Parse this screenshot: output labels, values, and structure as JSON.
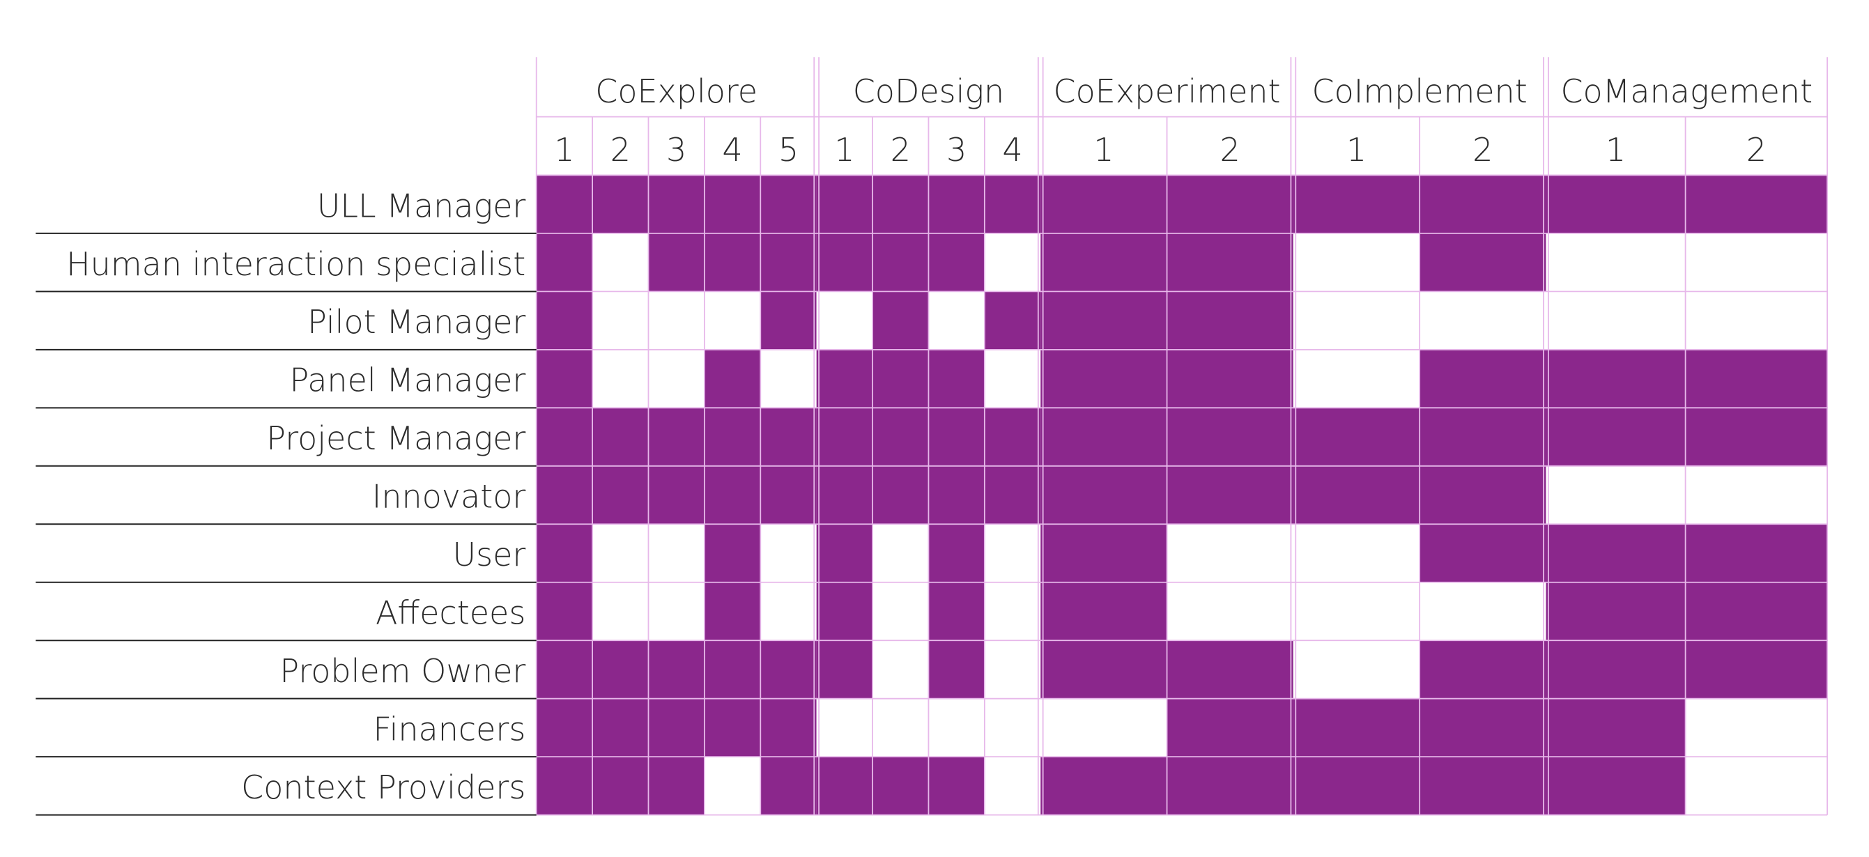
{
  "colors": {
    "filled": "#8b278c",
    "grid": "#e7b8ea",
    "rowline": "#222222",
    "text": "#2b2b2b"
  },
  "phases": [
    {
      "name": "CoExplore",
      "steps": [
        "1",
        "2",
        "3",
        "4",
        "5"
      ]
    },
    {
      "name": "CoDesign",
      "steps": [
        "1",
        "2",
        "3",
        "4"
      ]
    },
    {
      "name": "CoExperiment",
      "steps": [
        "1",
        "2"
      ]
    },
    {
      "name": "CoImplement",
      "steps": [
        "1",
        "2"
      ]
    },
    {
      "name": "CoManagement",
      "steps": [
        "1",
        "2"
      ]
    }
  ],
  "rows": [
    {
      "role": "ULL Manager",
      "cells": [
        1,
        1,
        1,
        1,
        1,
        1,
        1,
        1,
        1,
        1,
        1,
        1,
        1,
        1,
        1
      ]
    },
    {
      "role": "Human interaction specialist",
      "cells": [
        1,
        0,
        1,
        1,
        1,
        1,
        1,
        1,
        0,
        1,
        1,
        0,
        1,
        0,
        0
      ]
    },
    {
      "role": "Pilot Manager",
      "cells": [
        1,
        0,
        0,
        0,
        1,
        0,
        1,
        0,
        1,
        1,
        1,
        0,
        0,
        0,
        0
      ]
    },
    {
      "role": "Panel Manager",
      "cells": [
        1,
        0,
        0,
        1,
        0,
        1,
        1,
        1,
        0,
        1,
        1,
        0,
        1,
        1,
        1
      ]
    },
    {
      "role": "Project Manager",
      "cells": [
        1,
        1,
        1,
        1,
        1,
        1,
        1,
        1,
        1,
        1,
        1,
        1,
        1,
        1,
        1
      ]
    },
    {
      "role": "Innovator",
      "cells": [
        1,
        1,
        1,
        1,
        1,
        1,
        1,
        1,
        1,
        1,
        1,
        1,
        1,
        0,
        0
      ]
    },
    {
      "role": "User",
      "cells": [
        1,
        0,
        0,
        1,
        0,
        1,
        0,
        1,
        0,
        1,
        0,
        0,
        1,
        1,
        1
      ]
    },
    {
      "role": "Affectees",
      "cells": [
        1,
        0,
        0,
        1,
        0,
        1,
        0,
        1,
        0,
        1,
        0,
        0,
        0,
        1,
        1
      ]
    },
    {
      "role": "Problem Owner",
      "cells": [
        1,
        1,
        1,
        1,
        1,
        1,
        0,
        1,
        0,
        1,
        1,
        0,
        1,
        1,
        1
      ]
    },
    {
      "role": "Financers",
      "cells": [
        1,
        1,
        1,
        1,
        1,
        0,
        0,
        0,
        0,
        0,
        1,
        1,
        1,
        1,
        0
      ]
    },
    {
      "role": "Context Providers",
      "cells": [
        1,
        1,
        1,
        0,
        1,
        1,
        1,
        1,
        0,
        1,
        1,
        1,
        1,
        1,
        0
      ]
    }
  ]
}
